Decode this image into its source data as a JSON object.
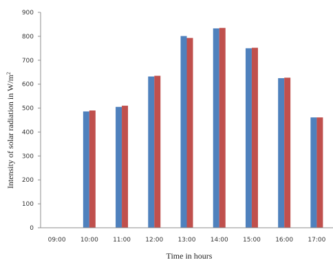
{
  "chart_data": {
    "type": "bar",
    "title": "",
    "xlabel": "Time in hours",
    "ylabel": "Intensity of solar radiation in W/m",
    "ylabel_superscript": "2",
    "categories": [
      "09:00",
      "10:00",
      "11:00",
      "12:00",
      "13:00",
      "14:00",
      "15:00",
      "16:00",
      "17:00"
    ],
    "series": [
      {
        "values": [
          0,
          486,
          505,
          632,
          801,
          833,
          750,
          625,
          461
        ],
        "color": "#4f81bd"
      },
      {
        "values": [
          0,
          490,
          510,
          635,
          793,
          835,
          752,
          627,
          461
        ],
        "color": "#c0504d"
      }
    ],
    "ylim": [
      0,
      900
    ],
    "yticks": [
      0,
      100,
      200,
      300,
      400,
      500,
      600,
      700,
      800,
      900
    ],
    "grid": false,
    "legend": "none"
  }
}
